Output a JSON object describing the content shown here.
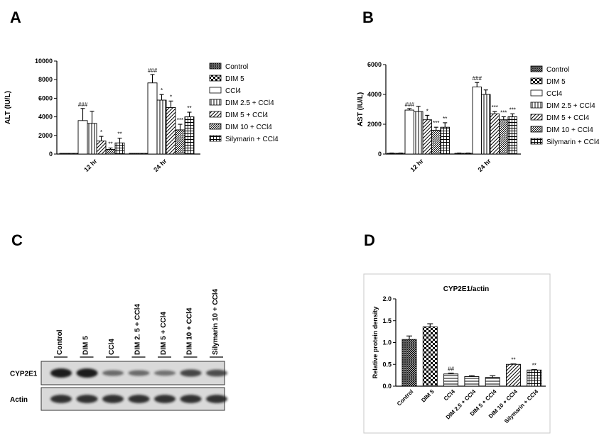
{
  "panels": {
    "a": "A",
    "b": "B",
    "c": "C",
    "d": "D"
  },
  "colors": {
    "axis": "#000000",
    "bar_stroke": "#000000",
    "blot_band": "#1a1a1a",
    "blot_background": "#d9d9d9",
    "panel_d_frame": "#c8c8c8"
  },
  "chart_data": [
    {
      "id": "A",
      "type": "bar",
      "ylabel": "ALT (IU/L)",
      "ylim": [
        0,
        10000
      ],
      "yticks": [
        "0",
        "2000",
        "4000",
        "6000",
        "8000",
        "10000"
      ],
      "categories": [
        "12 hr",
        "24 hr"
      ],
      "legend": [
        "Control",
        "DIM 5",
        "CCl4",
        "DIM 2.5 + CCl4",
        "DIM 5 + CCl4",
        "DIM 10 + CCl4",
        "Silymarin + CCl4"
      ],
      "legend_position": "right",
      "series": [
        {
          "name": "Control",
          "pattern": "dense-cross",
          "values": [
            0,
            0
          ],
          "errors": [
            0,
            0
          ],
          "marks": [
            "",
            ""
          ]
        },
        {
          "name": "DIM 5",
          "pattern": "checker",
          "values": [
            0,
            0
          ],
          "errors": [
            0,
            0
          ],
          "marks": [
            "",
            ""
          ]
        },
        {
          "name": "CCl4",
          "pattern": "white",
          "values": [
            3600,
            7650
          ],
          "errors": [
            1300,
            900
          ],
          "marks": [
            "###",
            "###"
          ]
        },
        {
          "name": "DIM 2.5 + CCl4",
          "pattern": "vertical",
          "values": [
            3300,
            5800
          ],
          "errors": [
            1300,
            600
          ],
          "marks": [
            "",
            "*"
          ]
        },
        {
          "name": "DIM 5 + CCl4",
          "pattern": "diagonal",
          "values": [
            1400,
            5000
          ],
          "errors": [
            500,
            700
          ],
          "marks": [
            "*",
            "*"
          ]
        },
        {
          "name": "DIM 10 + CCl4",
          "pattern": "diagonal-dense",
          "values": [
            500,
            2600
          ],
          "errors": [
            150,
            600
          ],
          "marks": [
            "**",
            "***"
          ]
        },
        {
          "name": "Silymarin + CCl4",
          "pattern": "grid",
          "values": [
            1200,
            4000
          ],
          "errors": [
            500,
            500
          ],
          "marks": [
            "**",
            "**"
          ]
        }
      ]
    },
    {
      "id": "B",
      "type": "bar",
      "ylabel": "AST (IU/L)",
      "ylim": [
        0,
        6000
      ],
      "yticks": [
        "0",
        "2000",
        "4000",
        "6000"
      ],
      "categories": [
        "12 hr",
        "24 hr"
      ],
      "legend": [
        "Control",
        "DIM 5",
        "CCl4",
        "DIM 2.5 + CCl4",
        "DIM 5 + CCl4",
        "DIM 10 + CCl4",
        "Silymarin + CCl4"
      ],
      "legend_position": "right",
      "series": [
        {
          "name": "Control",
          "pattern": "dense-cross",
          "values": [
            50,
            50
          ],
          "errors": [
            20,
            20
          ],
          "marks": [
            "",
            ""
          ]
        },
        {
          "name": "DIM 5",
          "pattern": "checker",
          "values": [
            50,
            50
          ],
          "errors": [
            20,
            20
          ],
          "marks": [
            "",
            ""
          ]
        },
        {
          "name": "CCl4",
          "pattern": "white",
          "values": [
            2950,
            4500
          ],
          "errors": [
            100,
            300
          ],
          "marks": [
            "###",
            "###"
          ]
        },
        {
          "name": "DIM 2.5 + CCl4",
          "pattern": "vertical",
          "values": [
            2850,
            4000
          ],
          "errors": [
            350,
            300
          ],
          "marks": [
            "",
            ""
          ]
        },
        {
          "name": "DIM 5 + CCl4",
          "pattern": "diagonal",
          "values": [
            2300,
            2700
          ],
          "errors": [
            300,
            150
          ],
          "marks": [
            "*",
            "***"
          ]
        },
        {
          "name": "DIM 10 + CCl4",
          "pattern": "diagonal-dense",
          "values": [
            1600,
            2300
          ],
          "errors": [
            200,
            200
          ],
          "marks": [
            "***",
            "***"
          ]
        },
        {
          "name": "Silymarin + CCl4",
          "pattern": "grid",
          "values": [
            1800,
            2500
          ],
          "errors": [
            300,
            200
          ],
          "marks": [
            "**",
            "***"
          ]
        }
      ]
    },
    {
      "id": "D",
      "type": "bar",
      "title": "CYP2E1/actin",
      "ylabel": "Relative protein density",
      "ylim": [
        0,
        2.0
      ],
      "yticks": [
        "0.0",
        "0.5",
        "1.0",
        "1.5",
        "2.0"
      ],
      "categories": [
        "Control",
        "DIM 5",
        "CCl4",
        "DIM 2.5 + CCl4",
        "DIM 5 + CCl4",
        "DIM 10 + CCl4",
        "Silymarin + CCl4"
      ],
      "patterns": [
        "dense-cross",
        "checker",
        "horizontal",
        "horizontal",
        "horizontal",
        "diagonal",
        "grid"
      ],
      "values": [
        1.07,
        1.36,
        0.28,
        0.22,
        0.2,
        0.5,
        0.37
      ],
      "errors": [
        0.08,
        0.07,
        0.02,
        0.02,
        0.04,
        0.01,
        0.01
      ],
      "marks": [
        "",
        "",
        "##",
        "",
        "",
        "**",
        "**"
      ]
    }
  ],
  "blot": {
    "lanes": [
      "Control",
      "DIM 5",
      "CCl4",
      "DIM 2. 5 + CCl4",
      "DIM 5 + CCl4",
      "DIM 10 + CCl4",
      "Silymarin 10 + CCl4"
    ],
    "rows": [
      {
        "label": "CYP2E1",
        "intensities": [
          1.0,
          1.0,
          0.45,
          0.45,
          0.4,
          0.7,
          0.65
        ]
      },
      {
        "label": "Actin",
        "intensities": [
          0.85,
          0.85,
          0.85,
          0.85,
          0.85,
          0.85,
          0.85
        ]
      }
    ]
  }
}
